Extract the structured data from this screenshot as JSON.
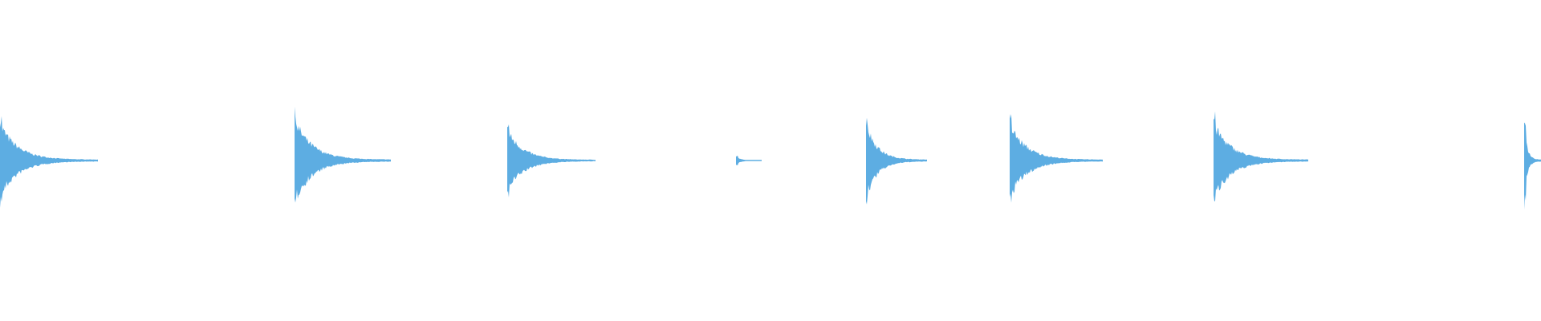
{
  "waveform": {
    "color": "#5DADE2",
    "background": "#FFFFFF",
    "bursts": [
      {
        "peak_amplitude": 0.9
      },
      {
        "peak_amplitude": 1.0
      },
      {
        "peak_amplitude": 0.74
      },
      {
        "peak_amplitude": 0.1
      },
      {
        "peak_amplitude": 0.92
      },
      {
        "peak_amplitude": 0.89
      },
      {
        "peak_amplitude": 0.92
      },
      {
        "peak_amplitude": 0.92
      }
    ]
  }
}
